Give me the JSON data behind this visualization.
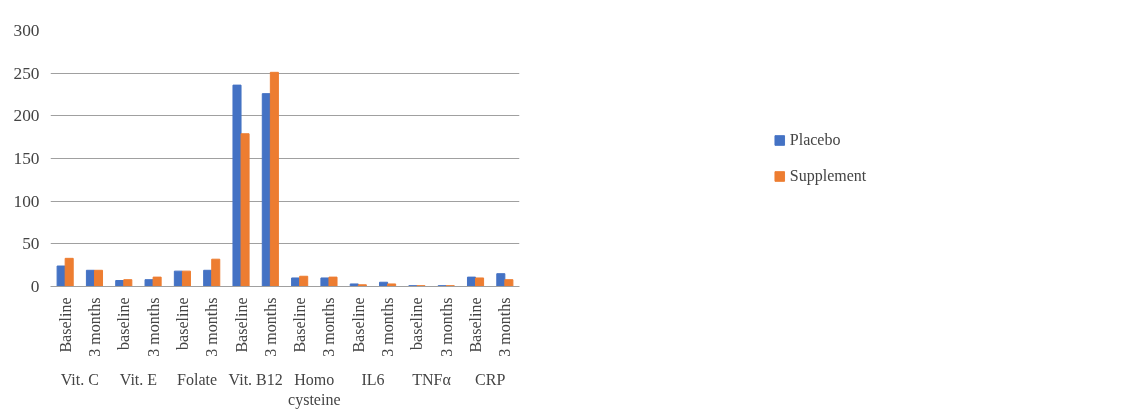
{
  "chart_data": {
    "type": "bar",
    "categories": [
      "Baseline",
      "3 months",
      "baseline",
      "3 months",
      "baseline",
      "3 months",
      "Baseline",
      "3 months",
      "Baseline",
      "3 months",
      "Baseline",
      "3 months",
      "baseline",
      "3 months",
      "Baseline",
      "3 months"
    ],
    "annotations": [
      "Vit. C",
      "Vit. E",
      "Folate",
      "Vit. B12",
      "Homo cysteine",
      "IL6",
      "TNFα",
      "CRP"
    ],
    "series": [
      {
        "name": "Placebo",
        "color": "#4472c4",
        "values": [
          24,
          19,
          7,
          8,
          18,
          19,
          236,
          226,
          10,
          10,
          3,
          5,
          1,
          1,
          11,
          15
        ]
      },
      {
        "name": "Supplement",
        "color": "#ed7d31",
        "values": [
          33,
          19,
          8,
          11,
          18,
          32,
          179,
          251,
          12,
          11,
          2,
          3,
          1,
          1,
          10,
          8
        ]
      }
    ],
    "ylim": [
      0,
      300
    ],
    "yticks": [
      0,
      50,
      100,
      150,
      200,
      250,
      300
    ],
    "grid": "y",
    "legend": "right"
  }
}
